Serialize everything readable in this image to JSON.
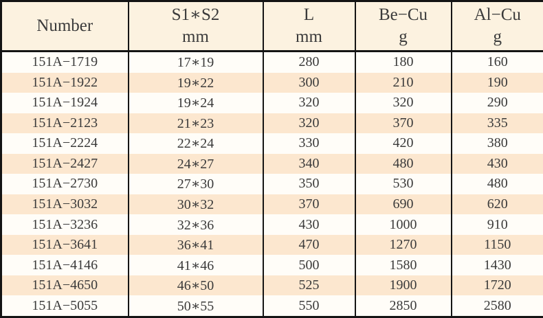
{
  "colors": {
    "header_bg": "#fcf2e0",
    "stripe_bg": "#fce7cf",
    "row_bg": "#fffdf8",
    "border": "#141414",
    "text": "#3a3a3a"
  },
  "chart_data": {
    "type": "table",
    "columns": [
      {
        "label": "Number",
        "unit": ""
      },
      {
        "label": "S1∗S2",
        "unit": "mm"
      },
      {
        "label": "L",
        "unit": "mm"
      },
      {
        "label": "Be−Cu",
        "unit": "g"
      },
      {
        "label": "Al−Cu",
        "unit": "g"
      }
    ],
    "rows": [
      [
        "151A−1719",
        "17∗19",
        "280",
        "180",
        "160"
      ],
      [
        "151A−1922",
        "19∗22",
        "300",
        "210",
        "190"
      ],
      [
        "151A−1924",
        "19∗24",
        "320",
        "320",
        "290"
      ],
      [
        "151A−2123",
        "21∗23",
        "320",
        "370",
        "335"
      ],
      [
        "151A−2224",
        "22∗24",
        "330",
        "420",
        "380"
      ],
      [
        "151A−2427",
        "24∗27",
        "340",
        "480",
        "430"
      ],
      [
        "151A−2730",
        "27∗30",
        "350",
        "530",
        "480"
      ],
      [
        "151A−3032",
        "30∗32",
        "370",
        "690",
        "620"
      ],
      [
        "151A−3236",
        "32∗36",
        "430",
        "1000",
        "910"
      ],
      [
        "151A−3641",
        "36∗41",
        "470",
        "1270",
        "1150"
      ],
      [
        "151A−4146",
        "41∗46",
        "500",
        "1580",
        "1430"
      ],
      [
        "151A−4650",
        "46∗50",
        "525",
        "1900",
        "1720"
      ],
      [
        "151A−5055",
        "50∗55",
        "550",
        "2850",
        "2580"
      ]
    ]
  }
}
